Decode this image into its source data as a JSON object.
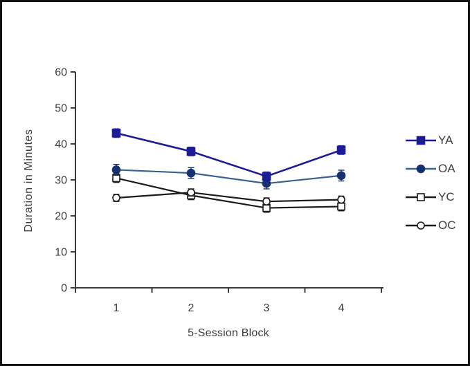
{
  "figure": {
    "background": "#ffffff",
    "border_color": "#111111",
    "axis_color": "#3b3b3b",
    "text_color": "#3b3b3b"
  },
  "chart_data": {
    "type": "line",
    "title": "",
    "xlabel": "5-Session Block",
    "ylabel": "Duration in Minutes",
    "x_categories": [
      "1",
      "2",
      "3",
      "4"
    ],
    "yticks": [
      0,
      10,
      20,
      30,
      40,
      50,
      60
    ],
    "ylim": [
      0,
      60
    ],
    "grid": false,
    "legend_position": "right",
    "series": [
      {
        "name": "YA",
        "values": [
          43.0,
          37.9,
          31.0,
          38.3
        ],
        "error": 1.2,
        "marker": "filled-square",
        "color": "#1c1c94",
        "marker_fill": "#1c1c94",
        "marker_stroke": "#1c1c94",
        "error_color": "#1c1c94",
        "marker_size": 11,
        "line_width": 2.6
      },
      {
        "name": "OA",
        "values": [
          32.8,
          31.9,
          29.0,
          31.2
        ],
        "error": 1.5,
        "marker": "filled-circle",
        "color": "#3b5f8f",
        "marker_fill": "#16316e",
        "marker_stroke": "#16316e",
        "error_color": "#16316e",
        "marker_size": 11,
        "line_width": 2.2
      },
      {
        "name": "YC",
        "values": [
          30.5,
          25.7,
          22.2,
          22.6
        ],
        "error": 1.2,
        "marker": "open-square",
        "color": "#1a1a1a",
        "marker_fill": "#ffffff",
        "marker_stroke": "#1a1a1a",
        "error_color": "#1a1a1a",
        "marker_size": 10,
        "line_width": 2.2
      },
      {
        "name": "OC",
        "values": [
          25.0,
          26.5,
          24.0,
          24.5
        ],
        "error": 1.0,
        "marker": "open-circle",
        "color": "#1a1a1a",
        "marker_fill": "#ffffff",
        "marker_stroke": "#1a1a1a",
        "error_color": "#1a1a1a",
        "marker_size": 10,
        "line_width": 2.2
      }
    ]
  }
}
